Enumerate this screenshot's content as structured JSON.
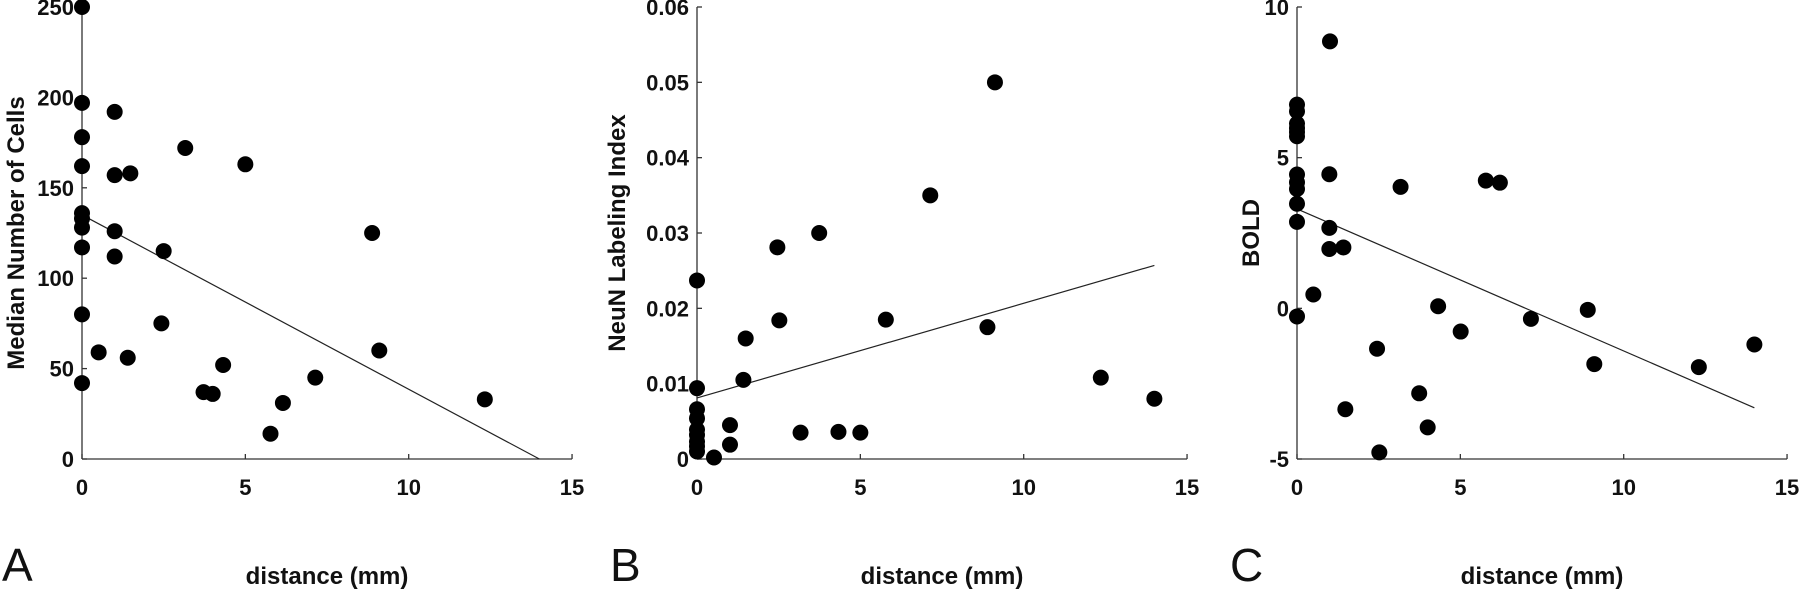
{
  "chart_data": [
    {
      "type": "scatter",
      "panel_letter": "A",
      "xlabel": "distance (mm)",
      "ylabel": "Median Number of Cells",
      "xlim": [
        0,
        15
      ],
      "ylim": [
        0,
        250
      ],
      "xticks": [
        "0",
        "5",
        "10",
        "15"
      ],
      "yticks": [
        "0",
        "50",
        "100",
        "150",
        "200",
        "250"
      ],
      "xtick_values": [
        0,
        5,
        10,
        15
      ],
      "ytick_values": [
        0,
        50,
        100,
        150,
        200,
        250
      ],
      "grid": false,
      "points": [
        [
          0,
          250
        ],
        [
          0,
          197
        ],
        [
          0,
          178
        ],
        [
          0,
          162
        ],
        [
          0,
          136
        ],
        [
          0,
          133
        ],
        [
          0,
          128
        ],
        [
          0,
          117
        ],
        [
          0,
          80
        ],
        [
          0,
          42
        ],
        [
          1,
          192
        ],
        [
          1,
          157
        ],
        [
          1.48,
          158
        ],
        [
          1,
          126
        ],
        [
          1,
          112
        ],
        [
          0.51,
          59
        ],
        [
          1.4,
          56
        ],
        [
          3.16,
          172
        ],
        [
          5,
          163
        ],
        [
          2.5,
          115
        ],
        [
          2.43,
          75
        ],
        [
          4.32,
          52
        ],
        [
          3.72,
          37
        ],
        [
          4.0,
          36
        ],
        [
          6.15,
          31
        ],
        [
          5.77,
          14
        ],
        [
          7.14,
          45
        ],
        [
          8.88,
          125
        ],
        [
          9.1,
          60
        ],
        [
          12.33,
          33
        ]
      ],
      "fit_line": [
        [
          0,
          135
        ],
        [
          14,
          0
        ]
      ]
    },
    {
      "type": "scatter",
      "panel_letter": "B",
      "xlabel": "distance (mm)",
      "ylabel": "NeuN Labeling Index",
      "xlim": [
        0,
        15
      ],
      "ylim": [
        0,
        0.06
      ],
      "xticks": [
        "0",
        "5",
        "10",
        "15"
      ],
      "yticks": [
        "0",
        "0.01",
        "0.02",
        "0.03",
        "0.04",
        "0.05",
        "0.06"
      ],
      "xtick_values": [
        0,
        5,
        10,
        15
      ],
      "ytick_values": [
        0,
        0.01,
        0.02,
        0.03,
        0.04,
        0.05,
        0.06
      ],
      "grid": false,
      "points": [
        [
          0,
          0.0237
        ],
        [
          0,
          0.0094
        ],
        [
          0,
          0.0066
        ],
        [
          0,
          0.0054
        ],
        [
          0,
          0.0039
        ],
        [
          0,
          0.0032
        ],
        [
          0,
          0.0023
        ],
        [
          0,
          0.0017
        ],
        [
          0,
          0.001
        ],
        [
          0.52,
          0.0002
        ],
        [
          1.01,
          0.0045
        ],
        [
          1.01,
          0.0019
        ],
        [
          1.42,
          0.0105
        ],
        [
          1.49,
          0.016
        ],
        [
          2.46,
          0.0281
        ],
        [
          2.52,
          0.0184
        ],
        [
          3.74,
          0.03
        ],
        [
          3.17,
          0.0035
        ],
        [
          4.33,
          0.0036
        ],
        [
          5,
          0.0035
        ],
        [
          5.78,
          0.0185
        ],
        [
          7.14,
          0.035
        ],
        [
          8.89,
          0.0175
        ],
        [
          9.12,
          0.05
        ],
        [
          12.36,
          0.0108
        ],
        [
          14.0,
          0.008
        ]
      ],
      "fit_line": [
        [
          0,
          0.0081
        ],
        [
          14,
          0.0257
        ]
      ]
    },
    {
      "type": "scatter",
      "panel_letter": "C",
      "xlabel": "distance (mm)",
      "ylabel": "BOLD",
      "xlim": [
        0,
        15
      ],
      "ylim": [
        -5,
        10
      ],
      "xticks": [
        "0",
        "5",
        "10",
        "15"
      ],
      "yticks": [
        "-5",
        "0",
        "5",
        "10"
      ],
      "xtick_values": [
        0,
        5,
        10,
        15
      ],
      "ytick_values": [
        -5,
        0,
        5,
        10
      ],
      "grid": false,
      "points": [
        [
          1.01,
          8.86
        ],
        [
          0,
          6.76
        ],
        [
          0,
          6.54
        ],
        [
          0,
          6.13
        ],
        [
          0,
          5.98
        ],
        [
          0,
          5.85
        ],
        [
          0,
          5.71
        ],
        [
          0,
          4.44
        ],
        [
          0,
          4.18
        ],
        [
          0,
          3.96
        ],
        [
          0,
          3.47
        ],
        [
          0,
          2.87
        ],
        [
          0,
          -0.27
        ],
        [
          0.99,
          4.45
        ],
        [
          0.99,
          2.67
        ],
        [
          0.99,
          1.97
        ],
        [
          1.42,
          2.02
        ],
        [
          0.5,
          0.46
        ],
        [
          3.17,
          4.03
        ],
        [
          5.78,
          4.24
        ],
        [
          6.21,
          4.17
        ],
        [
          4.32,
          0.07
        ],
        [
          5.01,
          -0.77
        ],
        [
          7.16,
          -0.35
        ],
        [
          2.45,
          -1.34
        ],
        [
          3.74,
          -2.82
        ],
        [
          1.48,
          -3.35
        ],
        [
          4.0,
          -3.95
        ],
        [
          2.52,
          -4.78
        ],
        [
          8.9,
          -0.05
        ],
        [
          9.1,
          -1.85
        ],
        [
          12.3,
          -1.95
        ],
        [
          14.0,
          -1.2
        ]
      ],
      "fit_line": [
        [
          0,
          3.3
        ],
        [
          14,
          -3.3
        ]
      ]
    }
  ]
}
